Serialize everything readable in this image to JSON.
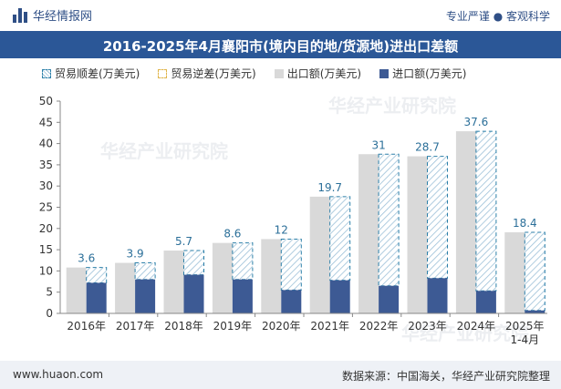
{
  "header": {
    "brand": "华经情报网",
    "tagline": "专业严谨 ● 客观科学"
  },
  "watermark": "华经产业研究院",
  "footer": {
    "website": "www.huaon.com",
    "source": "数据来源：中国海关，华经产业研究院整理"
  },
  "colors": {
    "export": "#d9d9d9",
    "import": "#3d5a94",
    "surplus_border": "#2b7fa8",
    "surplus_hatch": "#9cc0d8",
    "deficit_border": "#e0b54a",
    "title_band": "#2b5797"
  },
  "chart_data": {
    "type": "bar",
    "title": "2016-2025年4月襄阳市(境内目的地/货源地)进出口差额",
    "categories": [
      "2016年",
      "2017年",
      "2018年",
      "2019年",
      "2020年",
      "2021年",
      "2022年",
      "2023年",
      "2024年",
      "2025年\n1-4月"
    ],
    "series": [
      {
        "name": "贸易顺差(万美元)",
        "values": [
          3.6,
          3.9,
          5.7,
          8.6,
          12,
          19.7,
          31,
          28.7,
          37.6,
          18.4
        ]
      },
      {
        "name": "贸易逆差(万美元)",
        "values": [
          0,
          0,
          0,
          0,
          0,
          0,
          0,
          0,
          0,
          0
        ]
      },
      {
        "name": "出口额(万美元)",
        "values": [
          10.8,
          11.9,
          14.8,
          16.6,
          17.5,
          27.5,
          37.5,
          37,
          42.9,
          19.1
        ]
      },
      {
        "name": "进口额(万美元)",
        "values": [
          7.2,
          8.0,
          9.1,
          8.0,
          5.5,
          7.8,
          6.5,
          8.3,
          5.3,
          0.7
        ]
      }
    ],
    "data_labels": [
      "3.6",
      "3.9",
      "5.7",
      "8.6",
      "12",
      "19.7",
      "31",
      "28.7",
      "37.6",
      "18.4"
    ],
    "ylim": [
      0,
      50
    ],
    "yticks": [
      0,
      5,
      10,
      15,
      20,
      25,
      30,
      35,
      40,
      45,
      50
    ],
    "grid": false,
    "legend_position": "top-left"
  }
}
